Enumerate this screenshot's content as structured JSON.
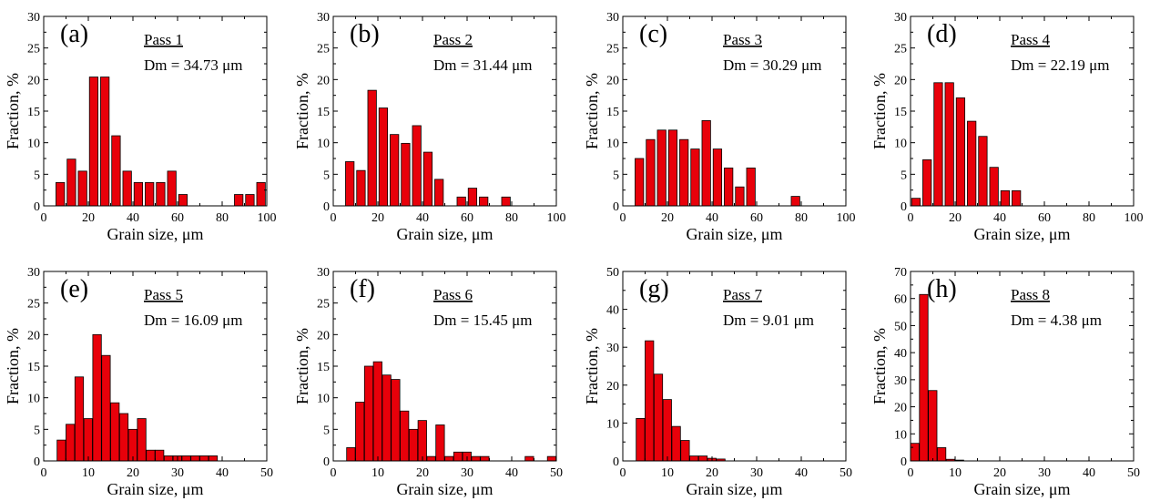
{
  "chart_data": [
    {
      "type": "bar",
      "panel_label": "(a)",
      "title": "Pass 1",
      "subtitle": "Dm = 34.73 μm",
      "xlabel": "Grain size, μm",
      "ylabel": "Fraction, %",
      "xlim": [
        0,
        100
      ],
      "ylim": [
        0,
        30
      ],
      "xticks": [
        0,
        20,
        40,
        60,
        80,
        100
      ],
      "yticks": [
        0,
        5,
        10,
        15,
        20,
        25,
        30
      ],
      "bar_width": 4,
      "x": [
        7.5,
        12.5,
        17.5,
        22.5,
        27.5,
        32.5,
        37.5,
        42.5,
        47.5,
        52.5,
        57.5,
        62.5,
        87.5,
        92.5,
        97.5
      ],
      "values": [
        3.7,
        7.4,
        5.5,
        20.4,
        20.4,
        11.1,
        5.5,
        3.7,
        3.7,
        3.7,
        5.5,
        1.8,
        1.8,
        1.8,
        3.7
      ],
      "bar_color": "#e8000a"
    },
    {
      "type": "bar",
      "panel_label": "(b)",
      "title": "Pass 2",
      "subtitle": "Dm = 31.44 μm",
      "xlabel": "Grain size, μm",
      "ylabel": "Fraction, %",
      "xlim": [
        0,
        100
      ],
      "ylim": [
        0,
        30
      ],
      "xticks": [
        0,
        20,
        40,
        60,
        80,
        100
      ],
      "yticks": [
        0,
        5,
        10,
        15,
        20,
        25,
        30
      ],
      "bar_width": 4,
      "x": [
        7.5,
        12.5,
        17.5,
        22.5,
        27.5,
        32.5,
        37.5,
        42.5,
        47.5,
        57.5,
        62.5,
        67.5,
        77.5
      ],
      "values": [
        7.0,
        5.6,
        18.3,
        15.5,
        11.3,
        9.9,
        12.7,
        8.5,
        4.2,
        1.4,
        2.8,
        1.4,
        1.4
      ],
      "bar_color": "#e8000a"
    },
    {
      "type": "bar",
      "panel_label": "(c)",
      "title": "Pass 3",
      "subtitle": "Dm = 30.29 μm",
      "xlabel": "Grain size, μm",
      "ylabel": "Fraction, %",
      "xlim": [
        0,
        100
      ],
      "ylim": [
        0,
        30
      ],
      "xticks": [
        0,
        20,
        40,
        60,
        80,
        100
      ],
      "yticks": [
        0,
        5,
        10,
        15,
        20,
        25,
        30
      ],
      "bar_width": 4,
      "x": [
        7.5,
        12.5,
        17.5,
        22.5,
        27.5,
        32.5,
        37.5,
        42.5,
        47.5,
        52.5,
        57.5,
        77.5
      ],
      "values": [
        7.5,
        10.5,
        12.0,
        12.0,
        10.5,
        9.0,
        13.5,
        9.0,
        6.0,
        3.0,
        6.0,
        1.5
      ],
      "bar_color": "#e8000a"
    },
    {
      "type": "bar",
      "panel_label": "(d)",
      "title": "Pass 4",
      "subtitle": "Dm = 22.19 μm",
      "xlabel": "Grain size, μm",
      "ylabel": "Fraction, %",
      "xlim": [
        0,
        100
      ],
      "ylim": [
        0,
        30
      ],
      "xticks": [
        0,
        20,
        40,
        60,
        80,
        100
      ],
      "yticks": [
        0,
        5,
        10,
        15,
        20,
        25,
        30
      ],
      "bar_width": 4,
      "x": [
        2.5,
        7.5,
        12.5,
        17.5,
        22.5,
        27.5,
        32.5,
        37.5,
        42.5,
        47.5
      ],
      "values": [
        1.2,
        7.3,
        19.5,
        19.5,
        17.1,
        13.4,
        11.0,
        6.1,
        2.4,
        2.4
      ],
      "bar_color": "#e8000a"
    },
    {
      "type": "bar",
      "panel_label": "(e)",
      "title": "Pass 5",
      "subtitle": "Dm = 16.09 μm",
      "xlabel": "Grain size, μm",
      "ylabel": "Fraction, %",
      "xlim": [
        0,
        50
      ],
      "ylim": [
        0,
        30
      ],
      "xticks": [
        0,
        10,
        20,
        30,
        40,
        50
      ],
      "yticks": [
        0,
        5,
        10,
        15,
        20,
        25,
        30
      ],
      "bar_width": 2,
      "x": [
        4,
        6,
        8,
        10,
        12,
        14,
        16,
        18,
        20,
        22,
        24,
        26,
        28,
        30,
        32,
        34,
        36,
        38
      ],
      "values": [
        3.3,
        5.8,
        13.3,
        6.7,
        20.0,
        16.7,
        9.2,
        7.5,
        5.0,
        6.7,
        1.7,
        1.7,
        0.8,
        0.8,
        0.8,
        0.8,
        0.8,
        0.8
      ],
      "bar_color": "#e8000a"
    },
    {
      "type": "bar",
      "panel_label": "(f)",
      "title": "Pass 6",
      "subtitle": "Dm = 15.45 μm",
      "xlabel": "Grain size, μm",
      "ylabel": "Fraction, %",
      "xlim": [
        0,
        50
      ],
      "ylim": [
        0,
        30
      ],
      "xticks": [
        0,
        10,
        20,
        30,
        40,
        50
      ],
      "yticks": [
        0,
        5,
        10,
        15,
        20,
        25,
        30
      ],
      "bar_width": 2,
      "x": [
        4,
        6,
        8,
        10,
        12,
        14,
        16,
        18,
        20,
        22,
        24,
        26,
        28,
        30,
        32,
        34,
        44,
        49
      ],
      "values": [
        2.1,
        9.3,
        15.0,
        15.7,
        13.6,
        12.9,
        7.9,
        5.0,
        6.4,
        0.7,
        5.7,
        0.7,
        1.4,
        1.4,
        0.7,
        0.7,
        0.7,
        0.7
      ],
      "bar_color": "#e8000a"
    },
    {
      "type": "bar",
      "panel_label": "(g)",
      "title": "Pass 7",
      "subtitle": "Dm = 9.01 μm",
      "xlabel": "Grain size, μm",
      "ylabel": "Fraction, %",
      "xlim": [
        0,
        50
      ],
      "ylim": [
        0,
        50
      ],
      "xticks": [
        0,
        10,
        20,
        30,
        40,
        50
      ],
      "yticks": [
        0,
        10,
        20,
        30,
        40,
        50
      ],
      "bar_width": 2,
      "x": [
        4,
        6,
        8,
        10,
        12,
        14,
        16,
        18,
        20,
        22
      ],
      "values": [
        11.2,
        31.7,
        22.9,
        16.2,
        9.1,
        5.4,
        1.3,
        1.3,
        0.7,
        0.5
      ],
      "bar_color": "#e8000a"
    },
    {
      "type": "bar",
      "panel_label": "(h)",
      "title": "Pass 8",
      "subtitle": "Dm = 4.38 μm",
      "xlabel": "Grain size, μm",
      "ylabel": "Fraction, %",
      "xlim": [
        0,
        50
      ],
      "ylim": [
        0,
        70
      ],
      "xticks": [
        0,
        10,
        20,
        30,
        40,
        50
      ],
      "yticks": [
        0,
        10,
        20,
        30,
        40,
        50,
        60,
        70
      ],
      "bar_width": 2,
      "x": [
        1,
        3,
        5,
        7,
        9,
        11
      ],
      "values": [
        6.5,
        61.5,
        26.0,
        4.9,
        0.6,
        0.3
      ],
      "bar_color": "#e8000a"
    }
  ]
}
